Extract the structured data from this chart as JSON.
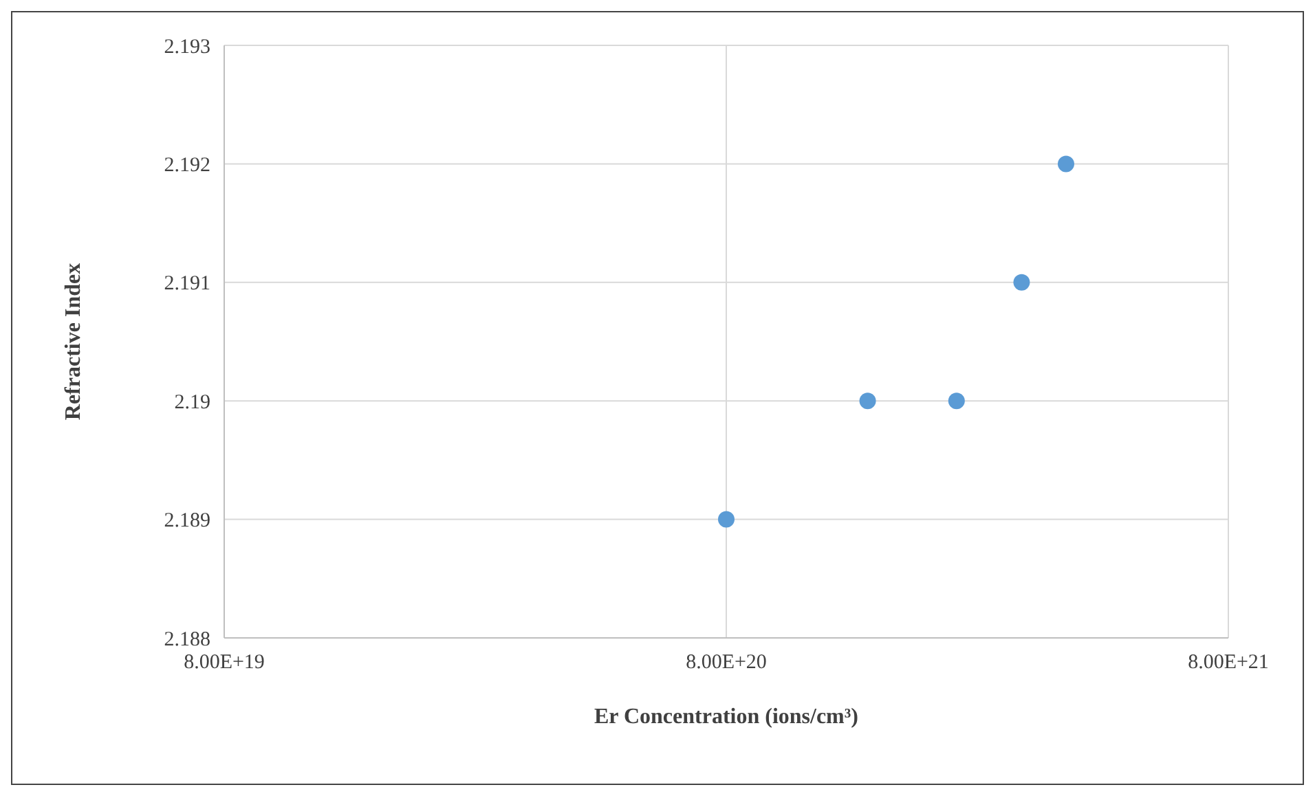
{
  "chart_data": {
    "type": "scatter",
    "xlabel": "Er Concentration  (ions/cm³)",
    "ylabel": "Refractive Index",
    "x": [
      8e+20,
      1.53e+21,
      2.3e+21,
      3.1e+21,
      3.8e+21
    ],
    "series": [
      {
        "color": "#5b9bd5",
        "values": [
          2.189,
          2.19,
          2.19,
          2.191,
          2.192
        ]
      }
    ],
    "log": "x",
    "xlim": [
      8e+19,
      8e+21
    ],
    "xticks": [
      {
        "value": 8e+19,
        "label": "8.00E+19"
      },
      {
        "value": 8e+20,
        "label": "8.00E+20"
      },
      {
        "value": 8e+21,
        "label": "8.00E+21"
      }
    ],
    "ylim": [
      2.188,
      2.193
    ],
    "yticks": [
      2.188,
      2.189,
      2.19,
      2.191,
      2.192,
      2.193
    ],
    "grid": true,
    "marker": "circle"
  }
}
